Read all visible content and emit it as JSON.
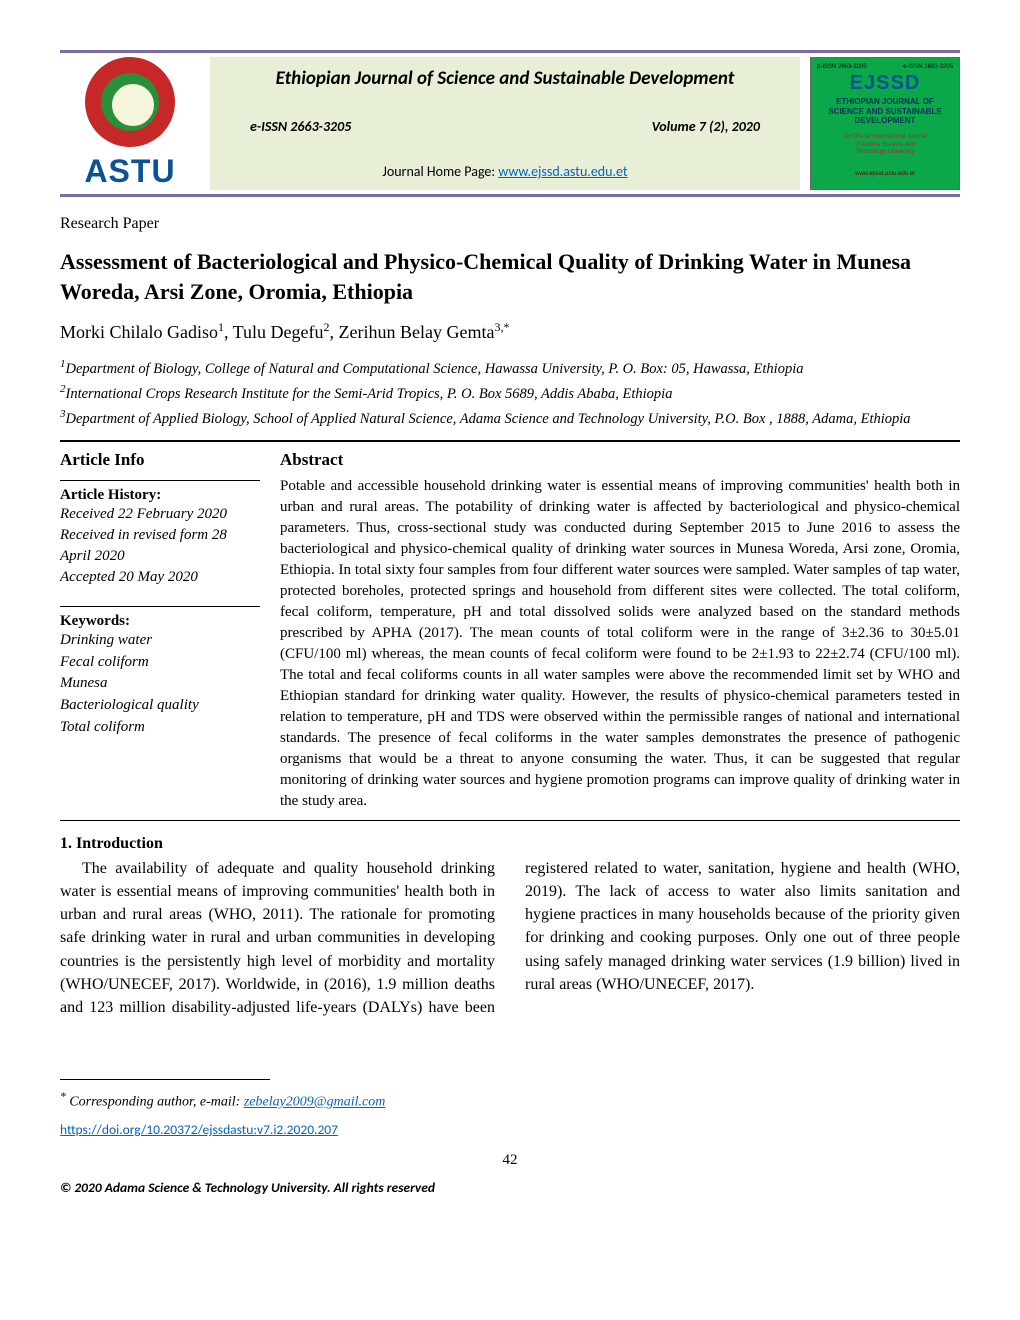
{
  "header": {
    "astu": "ASTU",
    "journal_title": "Ethiopian Journal of Science and Sustainable Development",
    "eissn": "e-ISSN 2663-3205",
    "volume": "Volume 7 (2), 2020",
    "home_label": "Journal Home Page: ",
    "home_url": "www.ejssd.astu.edu.et",
    "cover": {
      "top_left": "p-ISSN 2663-3205",
      "top_right": "e-ISSN 2663-3205",
      "ejssd": "EJSSD",
      "line1": "ETHIOPIAN JOURNAL OF",
      "line2": "SCIENCE AND SUSTAINABLE",
      "line3": "DEVELOPMENT",
      "mid1": "An Official International Journal",
      "mid2": "of Adama Science and",
      "mid3": "Technology University",
      "url": "www.ejssd.astu.edu.et"
    },
    "colors": {
      "band_bg": "#e8efd7",
      "band_border": "#7a6ba8",
      "astu_text": "#0b5394",
      "cover_bg": "#0ba84a",
      "link": "#0563c1"
    }
  },
  "paper": {
    "type": "Research Paper",
    "title": "Assessment of Bacteriological and Physico-Chemical Quality of Drinking Water in Munesa Woreda, Arsi Zone, Oromia, Ethiopia",
    "authors_html": "Morki Chilalo Gadiso<sup>1</sup>, Tulu Degefu<sup>2</sup>, Zerihun Belay Gemta<sup>3,*</sup>",
    "affiliations": [
      "<sup>1</sup>Department of Biology, College of Natural and Computational Science, Hawassa University, P. O. Box: 05, Hawassa, Ethiopia",
      "<sup>2</sup>International Crops Research Institute for the Semi-Arid Tropics, P. O. Box 5689, Addis Ababa, Ethiopia",
      "<sup>3</sup>Department of Applied Biology, School of Applied Natural Science, Adama Science and Technology University, P.O. Box , 1888, Adama, Ethiopia"
    ]
  },
  "info": {
    "heading": "Article Info",
    "history_label": "Article History",
    "received": "Received 22 February 2020",
    "revised": "Received in revised form 28 April 2020",
    "accepted": "Accepted 20 May 2020",
    "keywords_label": "Keywords:",
    "keywords": [
      "Drinking water",
      "Fecal coliform",
      "Munesa",
      "Bacteriological quality",
      "Total coliform"
    ]
  },
  "abstract": {
    "heading": "Abstract",
    "text": "Potable and accessible household drinking water is essential means of improving communities' health both in urban and rural areas. The potability of drinking water is affected by bacteriological and physico-chemical parameters. Thus, cross-sectional study was conducted during September 2015 to June 2016 to assess the bacteriological and physico-chemical quality of drinking water sources in Munesa Woreda, Arsi zone, Oromia, Ethiopia. In total sixty four samples from four different water sources were sampled. Water samples of tap water, protected boreholes, protected springs and household from different sites were collected. The total coliform, fecal coliform, temperature, pH and total dissolved solids were analyzed based on the standard methods prescribed by APHA (2017). The mean counts of total coliform were in the range of 3±2.36 to 30±5.01 (CFU/100 ml) whereas, the mean counts of fecal coliform were found to be 2±1.93 to 22±2.74 (CFU/100 ml). The total and fecal coliforms counts in all water samples were above the recommended limit set by WHO and Ethiopian standard for drinking water quality. However, the results of physico-chemical parameters tested in relation to temperature, pH and TDS were observed within the permissible ranges of national and international standards. The presence of fecal coliforms in the water samples demonstrates the presence of pathogenic organisms that would be a threat to anyone consuming the water. Thus, it can be suggested that regular monitoring of drinking water sources and hygiene promotion programs can improve quality of drinking water in the study area."
  },
  "intro": {
    "heading": "1. Introduction",
    "text": "The availability of adequate and quality household drinking water is essential means of improving communities' health both in urban and rural areas (WHO, 2011). The rationale for promoting safe drinking water in rural and urban communities in developing countries is the persistently high level of morbidity and mortality (WHO/UNECEF, 2017). Worldwide, in (2016), 1.9 million deaths and 123 million disability-adjusted life-years (DALYs) have been registered related to water, sanitation, hygiene and health (WHO, 2019). The lack of access to water also limits sanitation and hygiene practices in many households because of the priority given for drinking and cooking purposes.  Only one out of three people using safely managed drinking water services (1.9 billion) lived in rural areas (WHO/UNECEF, 2017)."
  },
  "footer": {
    "corr_label": "Corresponding author, e-mail: ",
    "corr_email": "zebelay2009@gmail.com",
    "doi_url": "https://doi.org/10.20372/ejssdastu:v7.i2.2020.207",
    "page": "42",
    "copyright": "© 2020 Adama Science & Technology University. All rights reserved"
  }
}
